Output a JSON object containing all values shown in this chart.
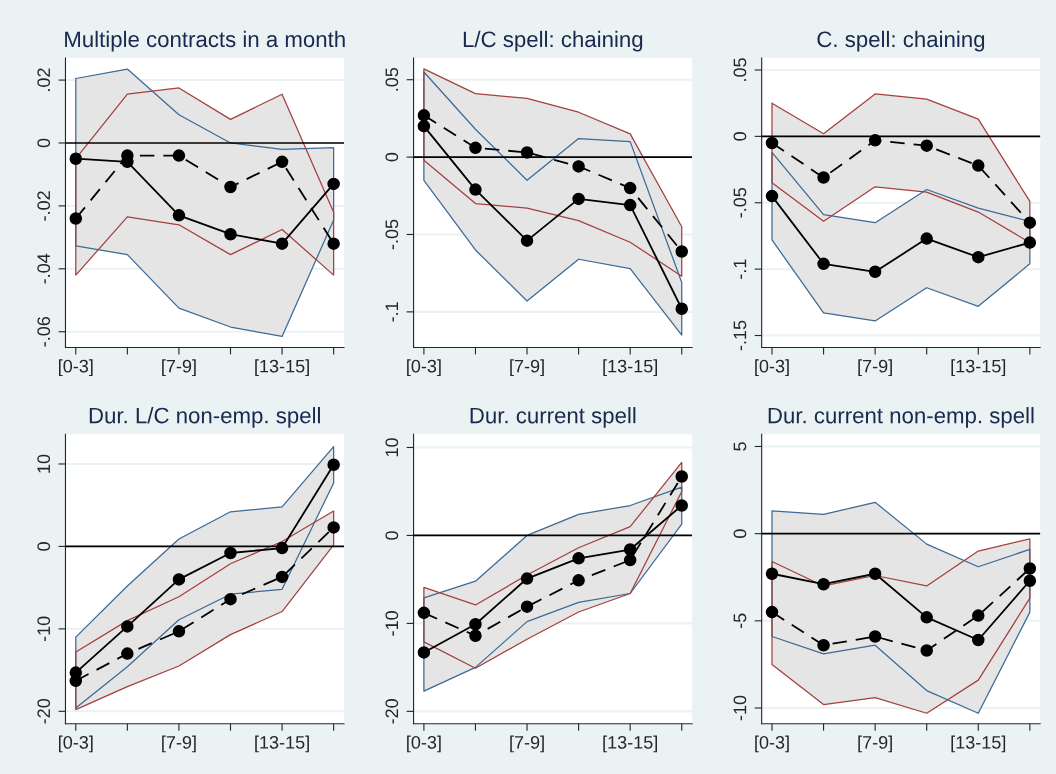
{
  "chart_data": [
    {
      "type": "line",
      "title": "Multiple contracts in a month",
      "categories": [
        "[0-3]",
        null,
        "[7-9]",
        null,
        "[13-15]",
        null
      ],
      "ylim": [
        -0.065,
        0.027
      ],
      "yticks": [
        {
          "value": 0.02,
          "label": ".02"
        },
        0,
        {
          "value": -0.02,
          "label": "-.02"
        },
        {
          "value": -0.04,
          "label": "-.04"
        },
        {
          "value": -0.06,
          "label": "-.06"
        }
      ],
      "grid": "y",
      "marker": "circle",
      "ref_lines": [
        {
          "axis": "y",
          "value": 0,
          "color": "#000000"
        }
      ],
      "series": [
        {
          "color": "#000000",
          "line_style": "solid",
          "values": [
            -0.005,
            -0.006,
            -0.023,
            -0.029,
            -0.032,
            -0.013
          ],
          "upper": [
            0.0205,
            0.0235,
            0.009,
            0.0,
            -0.002,
            -0.0015
          ],
          "lower": [
            -0.0327,
            -0.0355,
            -0.0525,
            -0.0585,
            -0.0615,
            -0.0245
          ]
        },
        {
          "color": "#000000",
          "line_style": "dashed",
          "values": [
            -0.024,
            -0.004,
            -0.004,
            -0.014,
            -0.006,
            -0.032
          ],
          "upper": [
            -0.005,
            0.0155,
            0.0175,
            0.0075,
            0.0155,
            -0.022
          ],
          "lower": [
            -0.042,
            -0.0235,
            -0.026,
            -0.0355,
            -0.0275,
            -0.042
          ]
        }
      ]
    },
    {
      "type": "line",
      "title": "L/C spell: chaining",
      "categories": [
        "[0-3]",
        null,
        "[7-9]",
        null,
        "[13-15]",
        null
      ],
      "ylim": [
        -0.123,
        0.064
      ],
      "yticks": [
        {
          "value": 0.05,
          "label": ".05"
        },
        0,
        {
          "value": -0.05,
          "label": "-.05"
        },
        {
          "value": -0.1,
          "label": "-.1"
        }
      ],
      "grid": "y",
      "marker": "circle",
      "ref_lines": [
        {
          "axis": "y",
          "value": 0,
          "color": "#000000"
        }
      ],
      "series": [
        {
          "color": "#000000",
          "line_style": "solid",
          "values": [
            0.02,
            -0.021,
            -0.054,
            -0.027,
            -0.031,
            -0.098
          ],
          "upper": [
            0.055,
            0.018,
            -0.015,
            0.012,
            0.01,
            -0.081
          ],
          "lower": [
            -0.015,
            -0.06,
            -0.093,
            -0.066,
            -0.072,
            -0.115
          ]
        },
        {
          "color": "#000000",
          "line_style": "dashed",
          "values": [
            0.027,
            0.006,
            0.003,
            -0.006,
            -0.02,
            -0.061
          ],
          "upper": [
            0.057,
            0.041,
            0.038,
            0.029,
            0.015,
            -0.045
          ],
          "lower": [
            -0.002,
            -0.03,
            -0.033,
            -0.041,
            -0.055,
            -0.077
          ]
        }
      ]
    },
    {
      "type": "line",
      "title": "C. spell: chaining",
      "categories": [
        "[0-3]",
        null,
        "[7-9]",
        null,
        "[13-15]",
        null
      ],
      "ylim": [
        -0.159,
        0.059
      ],
      "yticks": [
        {
          "value": 0.05,
          "label": ".05"
        },
        0,
        {
          "value": -0.05,
          "label": "-.05"
        },
        {
          "value": -0.1,
          "label": "-.1"
        },
        {
          "value": -0.15,
          "label": "-.15"
        }
      ],
      "grid": "y",
      "marker": "circle",
      "ref_lines": [
        {
          "axis": "y",
          "value": 0,
          "color": "#000000"
        }
      ],
      "series": [
        {
          "color": "#000000",
          "line_style": "solid",
          "values": [
            -0.045,
            -0.096,
            -0.102,
            -0.077,
            -0.091,
            -0.08
          ],
          "upper": [
            -0.012,
            -0.059,
            -0.065,
            -0.04,
            -0.054,
            -0.064
          ],
          "lower": [
            -0.078,
            -0.133,
            -0.139,
            -0.114,
            -0.128,
            -0.096
          ]
        },
        {
          "color": "#000000",
          "line_style": "dashed",
          "values": [
            -0.005,
            -0.031,
            -0.003,
            -0.007,
            -0.022,
            -0.065
          ],
          "upper": [
            0.025,
            0.002,
            0.032,
            0.028,
            0.013,
            -0.049
          ],
          "lower": [
            -0.035,
            -0.064,
            -0.038,
            -0.042,
            -0.057,
            -0.08
          ]
        }
      ]
    },
    {
      "type": "line",
      "title": "Dur. L/C non-emp. spell",
      "categories": [
        "[0-3]",
        null,
        "[7-9]",
        null,
        "[13-15]",
        null
      ],
      "ylim": [
        -21.5,
        13.6
      ],
      "yticks": [
        10,
        0,
        -10,
        -20
      ],
      "grid": "y",
      "marker": "circle",
      "ref_lines": [
        {
          "axis": "y",
          "value": 0,
          "color": "#000000"
        }
      ],
      "series": [
        {
          "color": "#000000",
          "line_style": "solid",
          "values": [
            -15.3,
            -9.7,
            -4.0,
            -0.8,
            -0.2,
            9.9
          ],
          "upper": [
            -11.0,
            -4.8,
            0.9,
            4.2,
            4.8,
            12.1
          ],
          "lower": [
            -19.6,
            -14.6,
            -8.9,
            -5.8,
            -5.2,
            7.7
          ]
        },
        {
          "color": "#000000",
          "line_style": "dashed",
          "values": [
            -16.3,
            -13.0,
            -10.3,
            -6.4,
            -3.7,
            2.3
          ],
          "upper": [
            -12.8,
            -9.0,
            -6.1,
            -2.1,
            0.6,
            4.3
          ],
          "lower": [
            -19.8,
            -17.0,
            -14.5,
            -10.7,
            -7.9,
            0.2
          ]
        }
      ]
    },
    {
      "type": "line",
      "title": "Dur. current spell",
      "categories": [
        "[0-3]",
        null,
        "[7-9]",
        null,
        "[13-15]",
        null
      ],
      "ylim": [
        -21.4,
        11.5
      ],
      "yticks": [
        10,
        0,
        -10,
        -20
      ],
      "grid": "y",
      "marker": "circle",
      "ref_lines": [
        {
          "axis": "y",
          "value": 0,
          "color": "#000000"
        }
      ],
      "series": [
        {
          "color": "#000000",
          "line_style": "solid",
          "values": [
            -13.3,
            -10.1,
            -4.9,
            -2.6,
            -1.6,
            3.4
          ],
          "upper": [
            -7.1,
            -5.2,
            0.0,
            2.4,
            3.4,
            5.5
          ],
          "lower": [
            -17.7,
            -15.0,
            -9.8,
            -7.6,
            -6.6,
            1.3
          ]
        },
        {
          "color": "#000000",
          "line_style": "dashed",
          "values": [
            -8.8,
            -11.4,
            -8.1,
            -5.1,
            -2.8,
            6.7
          ],
          "upper": [
            -5.9,
            -7.9,
            -4.5,
            -1.4,
            1.0,
            8.3
          ],
          "lower": [
            -12.1,
            -15.1,
            -11.8,
            -8.7,
            -6.6,
            5.0
          ]
        }
      ]
    },
    {
      "type": "line",
      "title": "Dur. current non-emp. spell",
      "categories": [
        "[0-3]",
        null,
        "[7-9]",
        null,
        "[13-15]",
        null
      ],
      "ylim": [
        -10.9,
        5.7
      ],
      "yticks": [
        5,
        0,
        -5,
        -10
      ],
      "grid": "y",
      "marker": "circle",
      "ref_lines": [
        {
          "axis": "y",
          "value": 0,
          "color": "#000000"
        }
      ],
      "series": [
        {
          "color": "#000000",
          "line_style": "solid",
          "values": [
            -2.3,
            -2.9,
            -2.3,
            -4.8,
            -6.1,
            -2.7
          ],
          "upper": [
            1.3,
            1.1,
            1.8,
            -0.6,
            -1.9,
            -0.9
          ],
          "lower": [
            -5.9,
            -6.9,
            -6.4,
            -9.0,
            -10.3,
            -4.5
          ]
        },
        {
          "color": "#000000",
          "line_style": "dashed",
          "values": [
            -4.5,
            -6.4,
            -5.9,
            -6.7,
            -4.7,
            -2.0
          ],
          "upper": [
            -1.6,
            -3.0,
            -2.4,
            -3.0,
            -1.0,
            -0.3
          ],
          "lower": [
            -7.5,
            -9.8,
            -9.4,
            -10.3,
            -8.4,
            -3.7
          ]
        }
      ]
    }
  ]
}
